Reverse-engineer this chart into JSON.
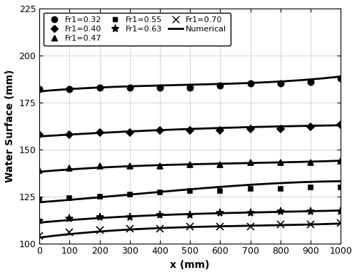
{
  "x_points": [
    0,
    100,
    200,
    300,
    400,
    500,
    600,
    700,
    800,
    900,
    1000
  ],
  "series": [
    {
      "label": "Fr1=0.32",
      "marker": "o",
      "markersize": 6,
      "y_data": [
        182,
        182,
        183,
        183,
        183,
        183,
        184,
        185,
        185,
        186,
        188
      ],
      "num_y": [
        181,
        182,
        183,
        183.5,
        184,
        184.5,
        185,
        185.5,
        186,
        187,
        189
      ]
    },
    {
      "label": "Fr1=0.40",
      "marker": "D",
      "markersize": 5,
      "y_data": [
        158,
        158,
        159,
        159,
        160,
        160,
        160,
        161,
        161,
        162,
        163
      ],
      "num_y": [
        157,
        158,
        158.5,
        159.5,
        160.5,
        161,
        161.5,
        162,
        162,
        162.5,
        163
      ]
    },
    {
      "label": "Fr1=0.47",
      "marker": "^",
      "markersize": 6,
      "y_data": [
        139,
        140,
        141,
        141,
        141,
        142,
        142,
        143,
        143,
        143,
        144
      ],
      "num_y": [
        138,
        139.5,
        140.5,
        141,
        141.5,
        142,
        142.5,
        143,
        143,
        143.5,
        144
      ]
    },
    {
      "label": "Fr1=0.55",
      "marker": "s",
      "markersize": 5,
      "y_data": [
        123,
        124,
        125,
        126,
        127,
        128,
        128,
        129,
        129,
        130,
        130
      ],
      "num_y": [
        122,
        123,
        124.5,
        126,
        127.5,
        129,
        130,
        131,
        132,
        133,
        133
      ]
    },
    {
      "label": "Fr1=0.63",
      "marker": "*",
      "markersize": 8,
      "y_data": [
        112,
        113,
        114,
        114,
        115,
        115,
        116,
        116,
        117,
        117,
        117
      ],
      "num_y": [
        111,
        112.5,
        113.5,
        114.5,
        115,
        115.5,
        116,
        116.5,
        117,
        117,
        117.5
      ]
    },
    {
      "label": "Fr1=0.70",
      "marker": "x",
      "markersize": 7,
      "y_data": [
        104,
        106,
        107,
        108,
        108,
        109,
        109,
        109,
        110,
        110,
        111
      ],
      "num_y": [
        103,
        105,
        106.5,
        107.5,
        108,
        108.5,
        109,
        109.5,
        110,
        110,
        110.5
      ]
    }
  ],
  "xlim": [
    0,
    1000
  ],
  "ylim": [
    100,
    225
  ],
  "yticks": [
    100,
    125,
    150,
    175,
    200,
    225
  ],
  "xticks": [
    0,
    100,
    200,
    300,
    400,
    500,
    600,
    700,
    800,
    900,
    1000
  ],
  "xlabel": "x (mm)",
  "ylabel": "Water Surface (mm)",
  "color": "black",
  "num_linewidth": 2.0,
  "legend_order": [
    0,
    1,
    2,
    3,
    4,
    5,
    6
  ],
  "figsize": [
    5.0,
    3.86
  ],
  "dpi": 100
}
